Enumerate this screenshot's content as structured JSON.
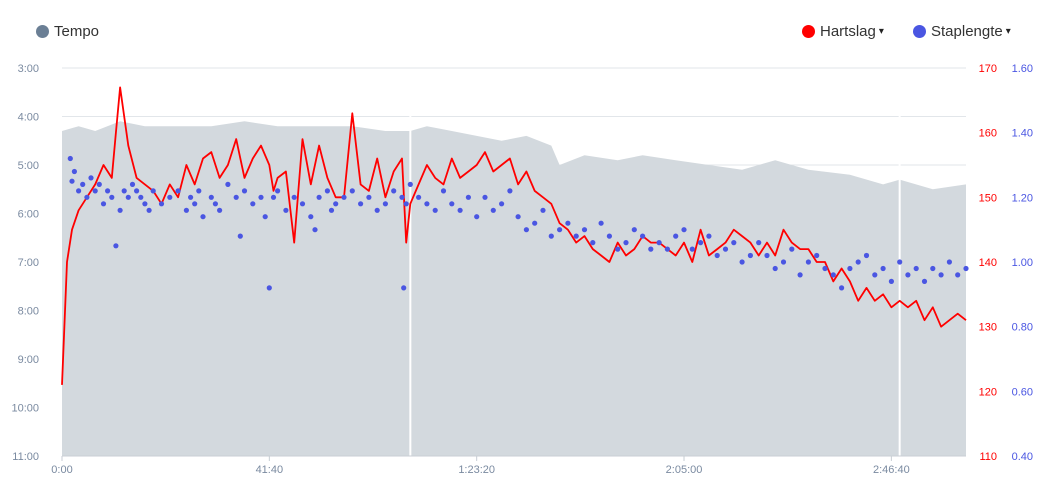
{
  "legend": {
    "tempo": {
      "label": "Tempo",
      "color": "#6b7f95"
    },
    "heart_rate": {
      "label": "Hartslag",
      "color": "#ff0000",
      "caret": "▾"
    },
    "cadence": {
      "label": "Staplengte",
      "color": "#4a56e2",
      "caret": "▾"
    }
  },
  "chart_data": {
    "type": "line",
    "x_axis": {
      "unit": "elapsed time (seconds)",
      "range": [
        0,
        10900
      ],
      "ticks": [
        {
          "value": 0,
          "label": "0:00"
        },
        {
          "value": 2500,
          "label": "41:40"
        },
        {
          "value": 5000,
          "label": "1:23:20"
        },
        {
          "value": 7500,
          "label": "2:05:00"
        },
        {
          "value": 10000,
          "label": "2:46:40"
        }
      ]
    },
    "y_axes": {
      "tempo": {
        "unit": "min/km",
        "range": [
          3,
          11
        ],
        "inverted": true,
        "ticks": [
          "3:00",
          "4:00",
          "5:00",
          "6:00",
          "7:00",
          "8:00",
          "9:00",
          "10:00",
          "11:00"
        ],
        "color": "#7a8aa0"
      },
      "heart_rate": {
        "unit": "bpm",
        "range": [
          110,
          170
        ],
        "ticks": [
          "110",
          "120",
          "130",
          "140",
          "150",
          "160",
          "170"
        ],
        "color": "#ff0000"
      },
      "cadence": {
        "unit": "m",
        "range": [
          0.4,
          1.6
        ],
        "ticks": [
          "0.40",
          "0.60",
          "0.80",
          "1.00",
          "1.20",
          "1.40",
          "1.60"
        ],
        "color": "#4a56e2"
      }
    },
    "grid": true,
    "series": [
      {
        "name": "Tempo",
        "type": "area",
        "color": "#d3d9de",
        "x": [
          0,
          200,
          400,
          700,
          1000,
          1400,
          1800,
          2200,
          2600,
          3000,
          3500,
          3900,
          4200,
          4400,
          4700,
          5000,
          5300,
          5600,
          5900,
          6000,
          6300,
          6700,
          7000,
          7400,
          7800,
          8200,
          8600,
          9000,
          9500,
          9900,
          10100,
          10500,
          10900
        ],
        "y": [
          4.3,
          4.2,
          4.3,
          4.1,
          4.2,
          4.2,
          4.2,
          4.1,
          4.2,
          4.2,
          4.2,
          4.3,
          4.3,
          4.2,
          4.3,
          4.4,
          4.5,
          4.4,
          4.6,
          5.0,
          4.8,
          4.9,
          4.8,
          4.9,
          5.0,
          5.1,
          4.9,
          5.1,
          5.2,
          5.4,
          5.3,
          5.5,
          5.4
        ],
        "gaps_at": [
          4200,
          10100
        ]
      },
      {
        "name": "Hartslag",
        "type": "line",
        "color": "#ff0000",
        "x": [
          0,
          60,
          120,
          200,
          300,
          400,
          500,
          600,
          650,
          700,
          800,
          900,
          1000,
          1100,
          1200,
          1300,
          1400,
          1500,
          1600,
          1700,
          1800,
          1900,
          2000,
          2100,
          2200,
          2300,
          2400,
          2500,
          2550,
          2600,
          2700,
          2800,
          2900,
          3000,
          3100,
          3200,
          3300,
          3400,
          3500,
          3600,
          3700,
          3800,
          3900,
          4000,
          4100,
          4150,
          4200,
          4300,
          4400,
          4500,
          4600,
          4700,
          4800,
          4900,
          5000,
          5100,
          5200,
          5300,
          5400,
          5500,
          5600,
          5700,
          5800,
          5900,
          6000,
          6100,
          6200,
          6300,
          6400,
          6500,
          6600,
          6700,
          6800,
          6900,
          7000,
          7100,
          7200,
          7300,
          7400,
          7500,
          7600,
          7700,
          7800,
          7900,
          8000,
          8100,
          8200,
          8300,
          8400,
          8500,
          8600,
          8700,
          8800,
          8900,
          9000,
          9100,
          9200,
          9300,
          9400,
          9500,
          9600,
          9700,
          9800,
          9900,
          10000,
          10100,
          10200,
          10300,
          10400,
          10500,
          10600,
          10700,
          10800,
          10900
        ],
        "y": [
          121,
          140,
          145,
          148,
          150,
          152,
          155,
          153,
          160,
          167,
          158,
          153,
          152,
          151,
          149,
          152,
          150,
          155,
          152,
          156,
          157,
          153,
          155,
          159,
          153,
          156,
          158,
          155,
          151,
          153,
          154,
          143,
          159,
          152,
          158,
          153,
          150,
          150,
          163,
          152,
          151,
          156,
          150,
          154,
          156,
          143,
          149,
          152,
          155,
          153,
          152,
          156,
          153,
          154,
          155,
          157,
          154,
          155,
          156,
          152,
          154,
          151,
          150,
          149,
          146,
          145,
          143,
          144,
          142,
          141,
          140,
          143,
          141,
          142,
          144,
          143,
          143,
          142,
          141,
          143,
          140,
          145,
          141,
          142,
          143,
          145,
          144,
          143,
          141,
          143,
          141,
          145,
          143,
          142,
          142,
          140,
          140,
          137,
          139,
          137,
          134,
          136,
          134,
          135,
          133,
          134,
          133,
          134,
          131,
          133,
          130,
          131,
          132,
          131
        ]
      },
      {
        "name": "Staplengte",
        "type": "scatter",
        "color": "#4a56e2",
        "x": [
          100,
          120,
          150,
          200,
          250,
          300,
          350,
          400,
          450,
          500,
          550,
          600,
          650,
          700,
          750,
          800,
          850,
          900,
          950,
          1000,
          1050,
          1100,
          1200,
          1300,
          1400,
          1500,
          1550,
          1600,
          1650,
          1700,
          1800,
          1850,
          1900,
          2000,
          2100,
          2150,
          2200,
          2300,
          2400,
          2450,
          2500,
          2550,
          2600,
          2700,
          2800,
          2900,
          3000,
          3050,
          3100,
          3200,
          3250,
          3300,
          3400,
          3500,
          3600,
          3700,
          3800,
          3900,
          4000,
          4100,
          4120,
          4150,
          4200,
          4300,
          4400,
          4500,
          4600,
          4700,
          4800,
          4900,
          5000,
          5100,
          5200,
          5300,
          5400,
          5500,
          5600,
          5700,
          5800,
          5900,
          6000,
          6100,
          6200,
          6300,
          6400,
          6500,
          6600,
          6700,
          6800,
          6900,
          7000,
          7100,
          7200,
          7300,
          7400,
          7500,
          7600,
          7700,
          7800,
          7900,
          8000,
          8100,
          8200,
          8300,
          8400,
          8500,
          8600,
          8700,
          8800,
          8900,
          9000,
          9100,
          9200,
          9300,
          9400,
          9500,
          9600,
          9700,
          9800,
          9900,
          10000,
          10100,
          10200,
          10300,
          10400,
          10500,
          10600,
          10700,
          10800,
          10900
        ],
        "y": [
          1.32,
          1.25,
          1.28,
          1.22,
          1.24,
          1.2,
          1.26,
          1.22,
          1.24,
          1.18,
          1.22,
          1.2,
          1.05,
          1.16,
          1.22,
          1.2,
          1.24,
          1.22,
          1.2,
          1.18,
          1.16,
          1.22,
          1.18,
          1.2,
          1.22,
          1.16,
          1.2,
          1.18,
          1.22,
          1.14,
          1.2,
          1.18,
          1.16,
          1.24,
          1.2,
          1.08,
          1.22,
          1.18,
          1.2,
          1.14,
          0.92,
          1.2,
          1.22,
          1.16,
          1.2,
          1.18,
          1.14,
          1.1,
          1.2,
          1.22,
          1.16,
          1.18,
          1.2,
          1.22,
          1.18,
          1.2,
          1.16,
          1.18,
          1.22,
          1.2,
          0.92,
          1.18,
          1.24,
          1.2,
          1.18,
          1.16,
          1.22,
          1.18,
          1.16,
          1.2,
          1.14,
          1.2,
          1.16,
          1.18,
          1.22,
          1.14,
          1.1,
          1.12,
          1.16,
          1.08,
          1.1,
          1.12,
          1.08,
          1.1,
          1.06,
          1.12,
          1.08,
          1.04,
          1.06,
          1.1,
          1.08,
          1.04,
          1.06,
          1.04,
          1.08,
          1.1,
          1.04,
          1.06,
          1.08,
          1.02,
          1.04,
          1.06,
          1.0,
          1.02,
          1.06,
          1.02,
          0.98,
          1.0,
          1.04,
          0.96,
          1.0,
          1.02,
          0.98,
          0.96,
          0.92,
          0.98,
          1.0,
          1.02,
          0.96,
          0.98,
          0.94,
          1.0,
          0.96,
          0.98,
          0.94,
          0.98,
          0.96,
          1.0,
          0.96,
          0.98
        ]
      }
    ]
  }
}
